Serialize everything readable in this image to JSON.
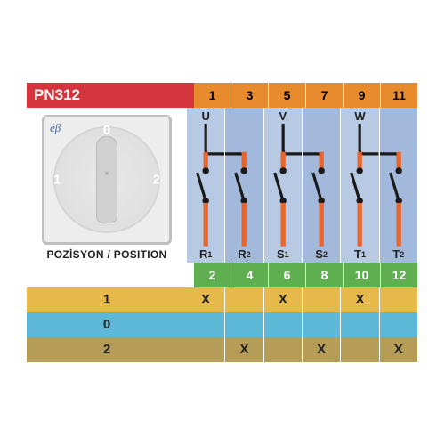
{
  "product": "PN312",
  "position_label": "POZİSYON / POSITION",
  "switch_positions": [
    "0",
    "1",
    "2"
  ],
  "header_top": {
    "cells": [
      "1",
      "3",
      "5",
      "7",
      "9",
      "11"
    ],
    "label_bg": "#d4343b",
    "cell_bg": "#e88b2f"
  },
  "terminals_top": [
    "U",
    "",
    "V",
    "",
    "W",
    ""
  ],
  "terminals_bot": [
    {
      "base": "R",
      "sub": "1"
    },
    {
      "base": "R",
      "sub": "2"
    },
    {
      "base": "S",
      "sub": "1"
    },
    {
      "base": "S",
      "sub": "2"
    },
    {
      "base": "T",
      "sub": "1"
    },
    {
      "base": "T",
      "sub": "2"
    }
  ],
  "header_bot": {
    "cells": [
      "2",
      "4",
      "6",
      "8",
      "10",
      "12"
    ],
    "cell_bg": "#5fae4f"
  },
  "circuit_bg_a": "#b7c9e3",
  "circuit_bg_b": "#a2b9db",
  "contact_color": "#e8652d",
  "wire_color": "#1a1a1a",
  "rows": [
    {
      "label": "1",
      "bg": "#e7b94a",
      "marks": [
        "X",
        "",
        "X",
        "",
        "X",
        ""
      ]
    },
    {
      "label": "0",
      "bg": "#5cb8d6",
      "marks": [
        "",
        "",
        "",
        "",
        "",
        ""
      ]
    },
    {
      "label": "2",
      "bg": "#b59d57",
      "marks": [
        "",
        "X",
        "",
        "X",
        "",
        "X"
      ]
    }
  ]
}
